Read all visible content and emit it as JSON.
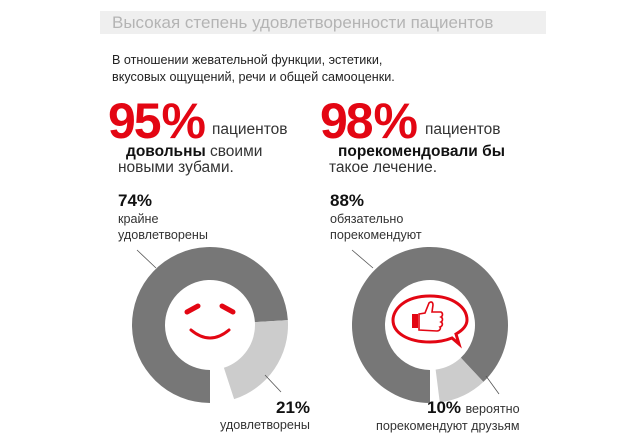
{
  "title": "Высокая степень удовлетворенности пациентов",
  "intro": [
    "В отношении жевательной функции, эстетики,",
    "вкусовых ощущений, речи и общей самооценки."
  ],
  "stat1": {
    "value": "95 %",
    "word": "пациентов",
    "bold": "довольны",
    "rest": "своими",
    "line3": "новыми зубами."
  },
  "stat2": {
    "value": "98 %",
    "word": "пациентов",
    "bold": "порекомендовали бы",
    "line3": "такое лечение."
  },
  "colors": {
    "accent": "#e30613",
    "dark": "#777777",
    "light": "#cccccc"
  },
  "chart_data": [
    {
      "type": "pie",
      "variant": "donut",
      "icon": "smiley-icon",
      "slices": [
        {
          "name": "крайне удовлетворены",
          "value": 74,
          "pct_label": "74%",
          "label_lines": [
            "крайне",
            "удовлетворены"
          ],
          "color": "#777777"
        },
        {
          "name": "удовлетворены",
          "value": 21,
          "pct_label": "21%",
          "label_lines": [
            "удовлетворены"
          ],
          "color": "#cccccc"
        }
      ]
    },
    {
      "type": "pie",
      "variant": "donut",
      "icon": "thumbs-up-speech-bubble-icon",
      "slices": [
        {
          "name": "обязательно порекомендуют",
          "value": 88,
          "pct_label": "88%",
          "label_lines": [
            "обязательно",
            "порекомендуют"
          ],
          "color": "#777777"
        },
        {
          "name": "вероятно порекомендуют друзьям",
          "value": 10,
          "pct_label": "10%",
          "label_lines": [
            "вероятно",
            "порекомендуют друзьям"
          ],
          "color": "#cccccc"
        }
      ]
    }
  ]
}
